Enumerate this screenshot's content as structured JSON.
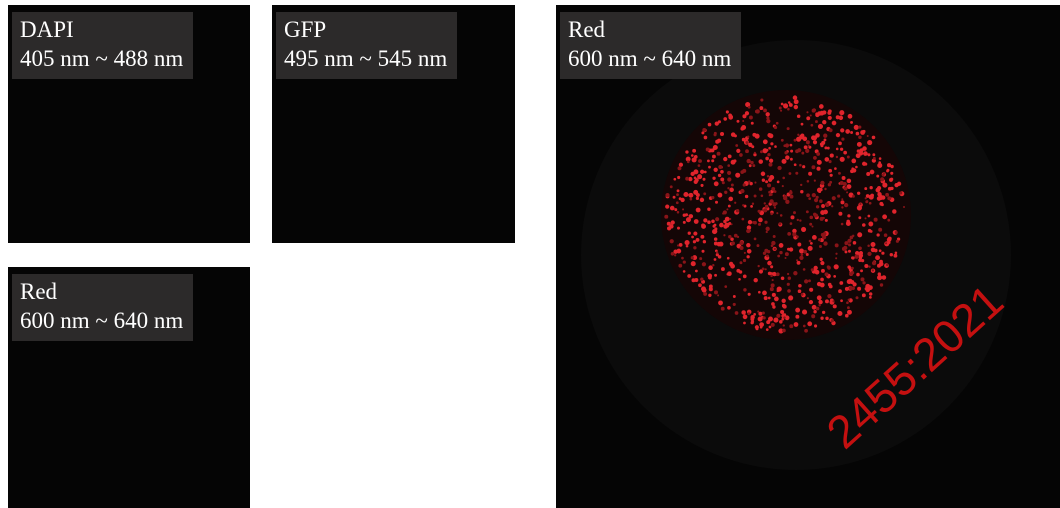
{
  "panels": [
    {
      "title": "DAPI",
      "range": "405 nm ~ 488 nm"
    },
    {
      "title": "GFP",
      "range": "495 nm ~ 545 nm"
    },
    {
      "title": "Red",
      "range": "600 nm ~ 640 nm"
    },
    {
      "title": "Red",
      "range": "600 nm ~ 640 nm"
    }
  ],
  "watermark": "2455:2021"
}
